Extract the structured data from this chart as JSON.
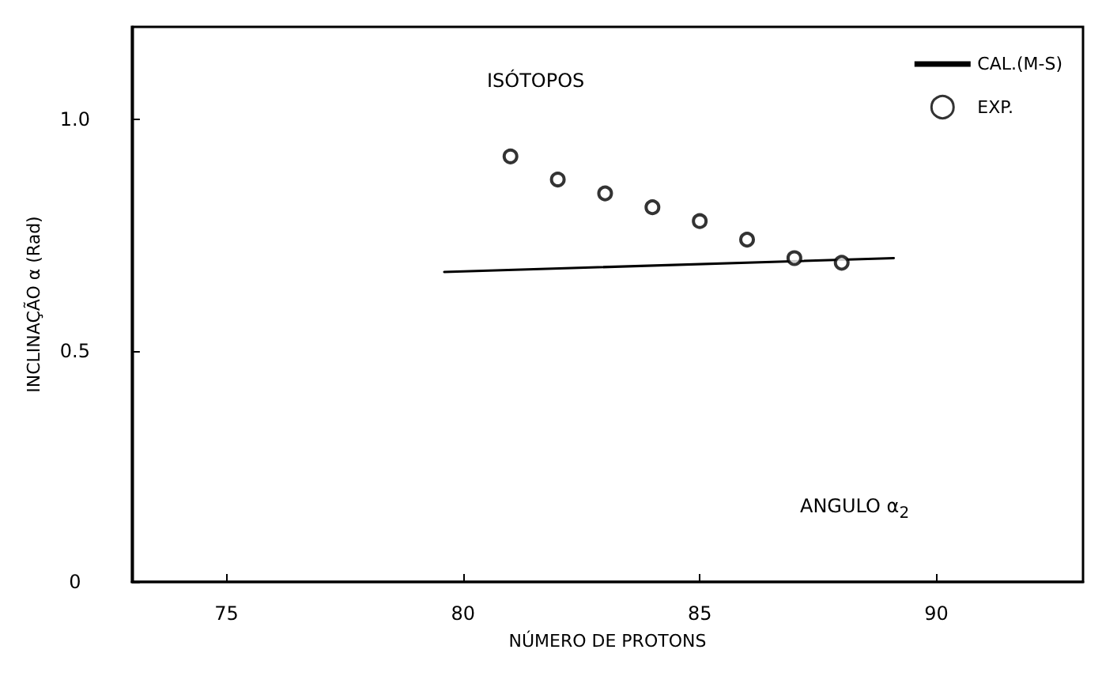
{
  "chart_data": {
    "type": "scatter",
    "xlabel": "NÚMERO DE PROTONS",
    "ylabel": "INCLINAÇÃO α (Rad)",
    "annotations": [
      "ISÓTOPOS",
      "ANGULO α$_{2}$"
    ],
    "xlim": [
      73,
      93.1
    ],
    "xticks": [
      75,
      80,
      85,
      90
    ],
    "ylim": [
      0,
      1.2
    ],
    "yticks": [
      0,
      {
        "value": 0.5,
        "label": "0.5"
      },
      {
        "value": 1,
        "label": "1.0"
      }
    ],
    "grid": false,
    "legend": "top right",
    "series": [
      {
        "name": "CAL.(M-S)",
        "type": "line",
        "color": "#000000",
        "marker": "none",
        "line_style": "solid",
        "x": [
          79.6,
          89.1
        ],
        "values": [
          0.67,
          0.7
        ]
      },
      {
        "name": "EXP.",
        "color": "#000000",
        "marker": "circle",
        "x": [
          81,
          82,
          83,
          84,
          85,
          86,
          87,
          88
        ],
        "values": [
          0.92,
          0.87,
          0.84,
          0.81,
          0.78,
          0.74,
          0.7,
          0.69
        ]
      }
    ]
  }
}
